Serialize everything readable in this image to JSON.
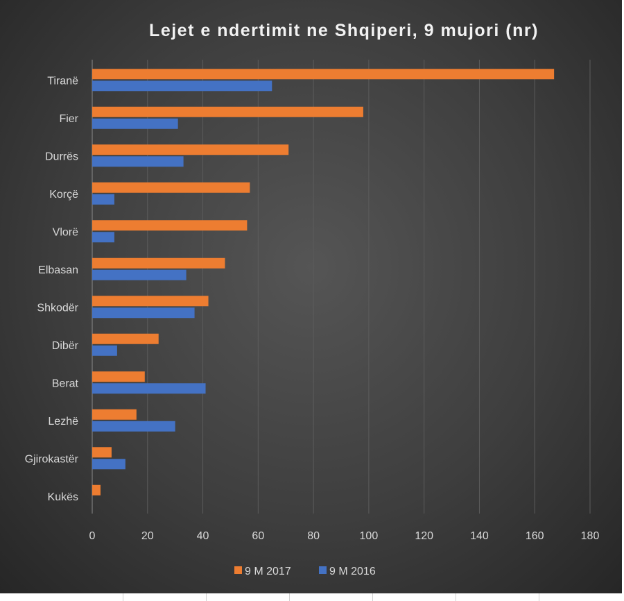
{
  "chart_data": {
    "type": "bar",
    "orientation": "horizontal",
    "title": "Lejet e ndertimit ne Shqiperi, 9 mujori (nr)",
    "categories": [
      "Tiranë",
      "Fier",
      "Durrës",
      "Korçë",
      "Vlorë",
      "Elbasan",
      "Shkodër",
      "Dibër",
      "Berat",
      "Lezhë",
      "Gjirokastër",
      "Kukës"
    ],
    "series": [
      {
        "name": "9 M 2017",
        "color": "#ed7d31",
        "values": [
          167,
          98,
          71,
          57,
          56,
          48,
          42,
          24,
          19,
          16,
          7,
          3
        ]
      },
      {
        "name": "9 M 2016",
        "color": "#4472c4",
        "values": [
          65,
          31,
          33,
          8,
          8,
          34,
          37,
          9,
          41,
          30,
          12,
          0
        ]
      }
    ],
    "xlim": [
      0,
      180
    ],
    "xticks": [
      "0",
      "20",
      "40",
      "60",
      "80",
      "100",
      "120",
      "140",
      "160",
      "180"
    ],
    "grid": true,
    "legend": "bottom",
    "background": "#404040"
  }
}
